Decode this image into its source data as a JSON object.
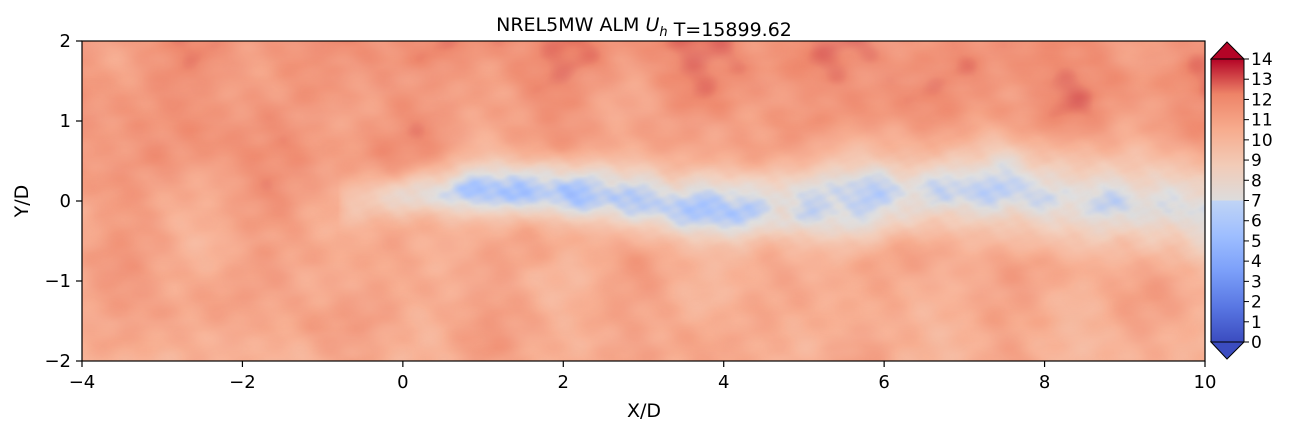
{
  "chart_data": {
    "type": "heatmap",
    "title": "NREL5MW ALM",
    "title_symbol": "U",
    "title_subscript": "h",
    "title_time": "T=15899.62",
    "xlabel": "X/D",
    "ylabel": "Y/D",
    "xlim": [
      -4,
      10
    ],
    "ylim": [
      -2,
      2
    ],
    "xticks": [
      -4,
      -2,
      0,
      2,
      4,
      6,
      8,
      10
    ],
    "xtick_labels": [
      "−4",
      "−2",
      "0",
      "2",
      "4",
      "6",
      "8",
      "10"
    ],
    "yticks": [
      -2,
      -1,
      0,
      1,
      2
    ],
    "ytick_labels": [
      "−2",
      "−1",
      "0",
      "1",
      "2"
    ],
    "colorbar": {
      "colormap": "coolwarm",
      "min": 0,
      "max": 14,
      "extend": "both",
      "ticks": [
        0,
        1,
        2,
        3,
        4,
        5,
        6,
        7,
        8,
        9,
        10,
        11,
        12,
        13,
        14
      ],
      "tick_labels": [
        "0",
        "1",
        "2",
        "3",
        "4",
        "5",
        "6",
        "7",
        "8",
        "9",
        "10",
        "11",
        "12",
        "13",
        "14"
      ]
    },
    "field": {
      "freestream_value": 11.3,
      "wake": {
        "start_x": -0.8,
        "center_y": 0.05,
        "min_value": 5.0,
        "min_location_x": 1.2,
        "recovered_value_at_x10": 7.4
      }
    },
    "colors": {
      "cold": "#3b4cc0",
      "neutral": "#dddddd",
      "warm": "#b40426"
    }
  }
}
